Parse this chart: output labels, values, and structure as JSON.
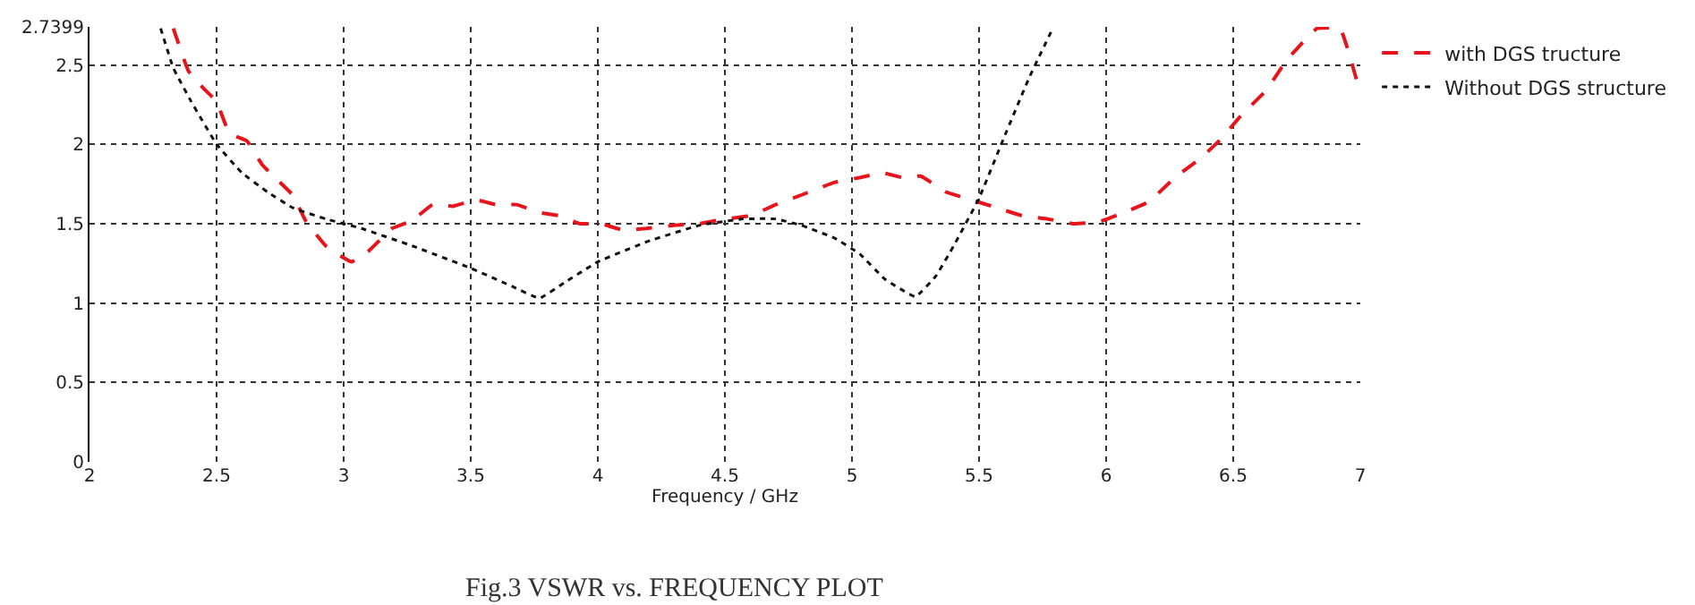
{
  "chart_data": {
    "type": "line",
    "xlabel": "Frequency / GHz",
    "annotations": [
      "Fig.3 VSWR vs. FREQUENCY PLOT"
    ],
    "xlim": [
      2,
      7
    ],
    "xticks": [
      2,
      2.5,
      3,
      3.5,
      4,
      4.5,
      5,
      5.5,
      6,
      6.5,
      7
    ],
    "ylim": [
      0,
      2.7399
    ],
    "yticks": [
      0,
      0.5,
      1,
      1.5,
      2,
      2.5,
      2.7399
    ],
    "grid": true,
    "legend": "top right",
    "marker": "none",
    "series": [
      {
        "name": "with DGS tructure",
        "color": "#e8141c",
        "line_style": "dashed",
        "x": [
          2.33,
          2.39,
          2.45,
          2.5,
          2.55,
          2.62,
          2.68,
          2.73,
          2.8,
          2.85,
          2.93,
          3.03,
          3.1,
          3.19,
          3.27,
          3.35,
          3.43,
          3.52,
          3.6,
          3.68,
          3.77,
          3.85,
          3.93,
          4.01,
          4.1,
          4.19,
          4.3,
          4.4,
          4.5,
          4.6,
          4.7,
          4.8,
          4.93,
          5.03,
          5.12,
          5.2,
          5.27,
          5.37,
          5.47,
          5.57,
          5.67,
          5.77,
          5.87,
          5.97,
          6.07,
          6.17,
          6.27,
          6.37,
          6.45,
          6.53,
          6.63,
          6.71,
          6.79,
          6.83,
          6.92,
          7.0
        ],
        "values": [
          2.73,
          2.46,
          2.35,
          2.27,
          2.07,
          2.02,
          1.87,
          1.79,
          1.68,
          1.52,
          1.36,
          1.26,
          1.33,
          1.47,
          1.52,
          1.62,
          1.61,
          1.65,
          1.62,
          1.62,
          1.57,
          1.55,
          1.5,
          1.5,
          1.46,
          1.47,
          1.49,
          1.5,
          1.53,
          1.55,
          1.62,
          1.68,
          1.76,
          1.79,
          1.82,
          1.79,
          1.8,
          1.7,
          1.65,
          1.6,
          1.55,
          1.53,
          1.5,
          1.51,
          1.57,
          1.64,
          1.79,
          1.91,
          2.03,
          2.18,
          2.34,
          2.53,
          2.67,
          2.73,
          2.73,
          2.32
        ]
      },
      {
        "name": "Without DGS structure",
        "color": "#111111",
        "line_style": "dotted",
        "x": [
          2.28,
          2.33,
          2.4,
          2.5,
          2.6,
          2.7,
          2.8,
          2.93,
          3.07,
          3.27,
          3.5,
          3.67,
          3.77,
          3.87,
          4.0,
          4.2,
          4.4,
          4.57,
          4.7,
          4.8,
          4.93,
          5.03,
          5.13,
          5.25,
          5.33,
          5.4,
          5.5,
          5.6,
          5.7,
          5.79
        ],
        "values": [
          2.73,
          2.48,
          2.27,
          2.0,
          1.82,
          1.7,
          1.6,
          1.53,
          1.47,
          1.36,
          1.22,
          1.1,
          1.03,
          1.13,
          1.26,
          1.39,
          1.49,
          1.53,
          1.53,
          1.49,
          1.41,
          1.31,
          1.15,
          1.04,
          1.17,
          1.36,
          1.66,
          2.05,
          2.43,
          2.73
        ]
      }
    ]
  }
}
